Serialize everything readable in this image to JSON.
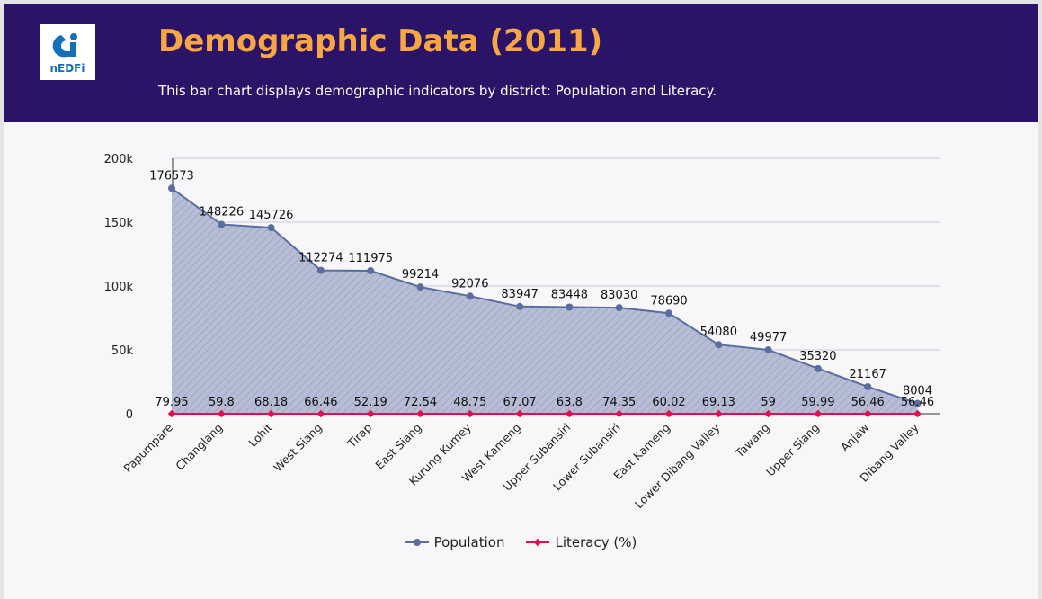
{
  "header": {
    "title": "Demographic Data (2011)",
    "subtitle": "This bar chart displays demographic indicators by district: Population and Literacy.",
    "logo_text": "nEDFi"
  },
  "colors": {
    "header_bg": "#2b1467",
    "title": "#f7a644",
    "population": "#5a6d9e",
    "literacy": "#e0104f"
  },
  "chart_data": {
    "type": "line",
    "title": "Demographic Data (2011)",
    "categories": [
      "Papumpare",
      "Changlang",
      "Lohit",
      "West Siang",
      "Tirap",
      "East Siang",
      "Kurung Kumey",
      "West Kameng",
      "Upper Subansiri",
      "Lower Subansiri",
      "East Kameng",
      "Lower Dibang Valley",
      "Tawang",
      "Upper Siang",
      "Anjaw",
      "Dibang Valley"
    ],
    "series": [
      {
        "name": "Population",
        "fill": "area",
        "values": [
          176573,
          148226,
          145726,
          112274,
          111975,
          99214,
          92076,
          83947,
          83448,
          83030,
          78690,
          54080,
          49977,
          35320,
          21167,
          8004
        ]
      },
      {
        "name": "Literacy (%)",
        "values": [
          79.95,
          59.8,
          68.18,
          66.46,
          52.19,
          72.54,
          48.75,
          67.07,
          63.8,
          74.35,
          60.02,
          69.13,
          59,
          59.99,
          56.46,
          56.46
        ]
      }
    ],
    "ylim": [
      0,
      200000
    ],
    "yticks": [
      0,
      50000,
      100000,
      150000,
      200000
    ],
    "ytick_labels": [
      "0",
      "50k",
      "100k",
      "150k",
      "200k"
    ],
    "grid": true,
    "legend": "bottom-center"
  }
}
